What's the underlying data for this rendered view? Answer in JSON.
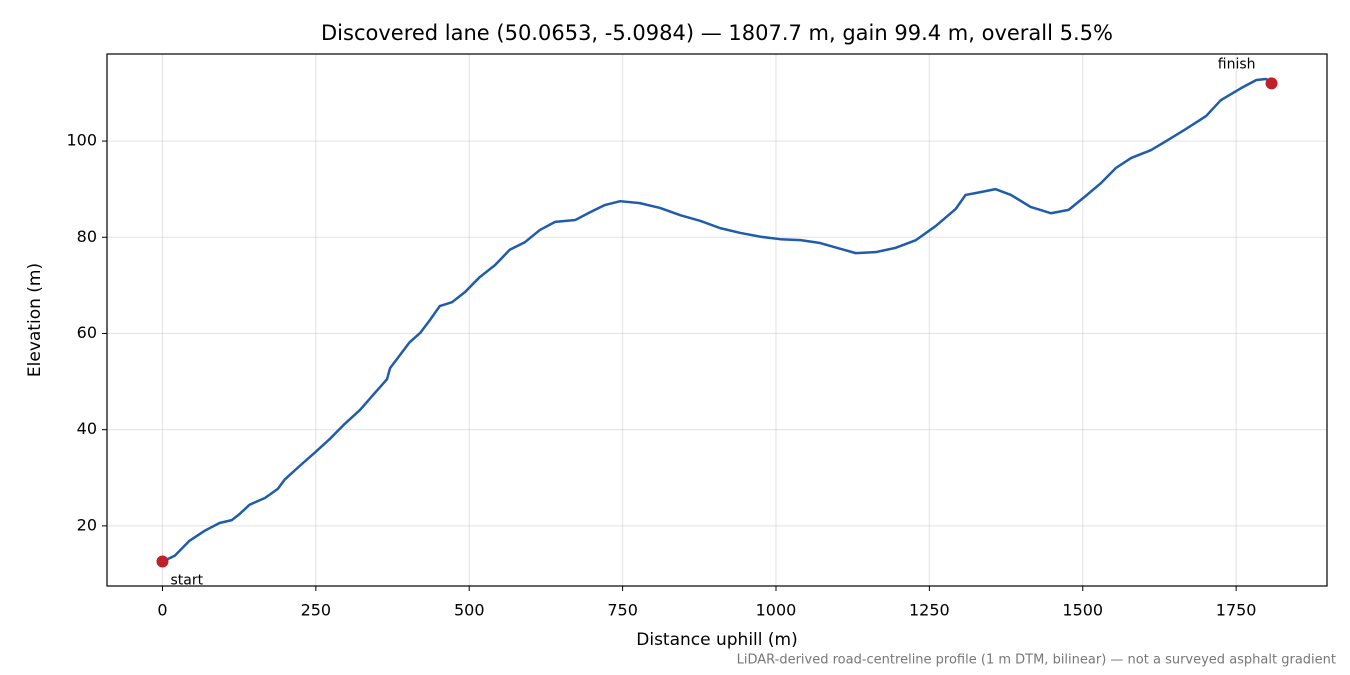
{
  "chart_data": {
    "type": "line",
    "title": "Discovered lane (50.0653, -5.0984) — 1807.7 m, gain 99.4 m, overall 5.5%",
    "x_label": "Distance uphill (m)",
    "y_label": "Elevation (m)",
    "note": "LiDAR-derived road-centreline profile (1 m DTM, bilinear) — not a surveyed asphalt gradient",
    "color": "#1f5cab",
    "x": [
      0,
      20,
      44,
      69,
      93,
      113,
      126,
      142,
      167,
      188,
      199,
      224,
      248,
      273,
      297,
      322,
      346,
      366,
      371,
      387,
      403,
      420,
      436,
      452,
      472,
      493,
      517,
      542,
      566,
      591,
      615,
      640,
      673,
      697,
      721,
      746,
      778,
      811,
      844,
      877,
      909,
      942,
      975,
      1007,
      1040,
      1072,
      1105,
      1130,
      1162,
      1195,
      1228,
      1260,
      1293,
      1309,
      1326,
      1358,
      1383,
      1415,
      1448,
      1477,
      1505,
      1530,
      1554,
      1579,
      1611,
      1636,
      1668,
      1701,
      1725,
      1758,
      1783,
      1799,
      1807.7
    ],
    "values": [
      12.6,
      13.8,
      16.9,
      19.0,
      20.6,
      21.2,
      22.5,
      24.4,
      25.8,
      27.7,
      29.6,
      32.5,
      35.2,
      38.1,
      41.2,
      44.1,
      47.6,
      50.5,
      52.8,
      55.5,
      58.2,
      60.1,
      62.8,
      65.7,
      66.5,
      68.6,
      71.7,
      74.2,
      77.4,
      79.0,
      81.5,
      83.2,
      83.6,
      85.2,
      86.7,
      87.5,
      87.1,
      86.1,
      84.6,
      83.4,
      81.9,
      80.9,
      80.1,
      79.6,
      79.4,
      78.8,
      77.6,
      76.7,
      76.9,
      77.8,
      79.4,
      82.3,
      85.9,
      88.8,
      89.2,
      90.0,
      88.8,
      86.3,
      85.0,
      85.7,
      88.6,
      91.3,
      94.4,
      96.5,
      98.1,
      100.0,
      102.5,
      105.2,
      108.5,
      111.0,
      112.7,
      112.9,
      112.0
    ],
    "markers": [
      {
        "label": "start",
        "x": 0,
        "y": 12.6,
        "color": "#c0202a"
      },
      {
        "label": "finish",
        "x": 1807.7,
        "y": 112.0,
        "color": "#c0202a"
      }
    ],
    "xlim": [
      -90.4,
      1898.1
    ],
    "ylim": [
      7.5,
      118.1
    ],
    "xticks": [
      0,
      250,
      500,
      750,
      1000,
      1250,
      1500,
      1750
    ],
    "yticks": [
      20,
      40,
      60,
      80,
      100
    ],
    "grid": true
  }
}
